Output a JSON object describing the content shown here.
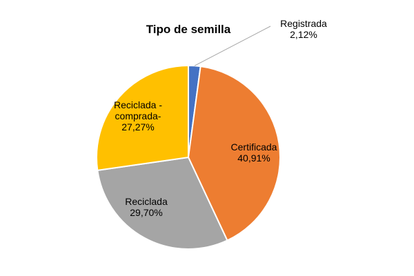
{
  "chart_data": {
    "type": "pie",
    "title": "Tipo de semilla",
    "start_angle_deg": 0,
    "slices": [
      {
        "label_lines": [
          "Registrada",
          "2,12%"
        ],
        "value": 2.12,
        "color": "#4472c4"
      },
      {
        "label_lines": [
          "Certificada",
          "40,91%"
        ],
        "value": 40.91,
        "color": "#ed7d31"
      },
      {
        "label_lines": [
          "Reciclada",
          "29,70%"
        ],
        "value": 29.7,
        "color": "#a5a5a5"
      },
      {
        "label_lines": [
          "Reciclada -",
          "comprada-",
          "27,27%"
        ],
        "value": 27.27,
        "color": "#ffc000"
      }
    ],
    "legend": "none",
    "data_labels": "category name and percentage"
  }
}
